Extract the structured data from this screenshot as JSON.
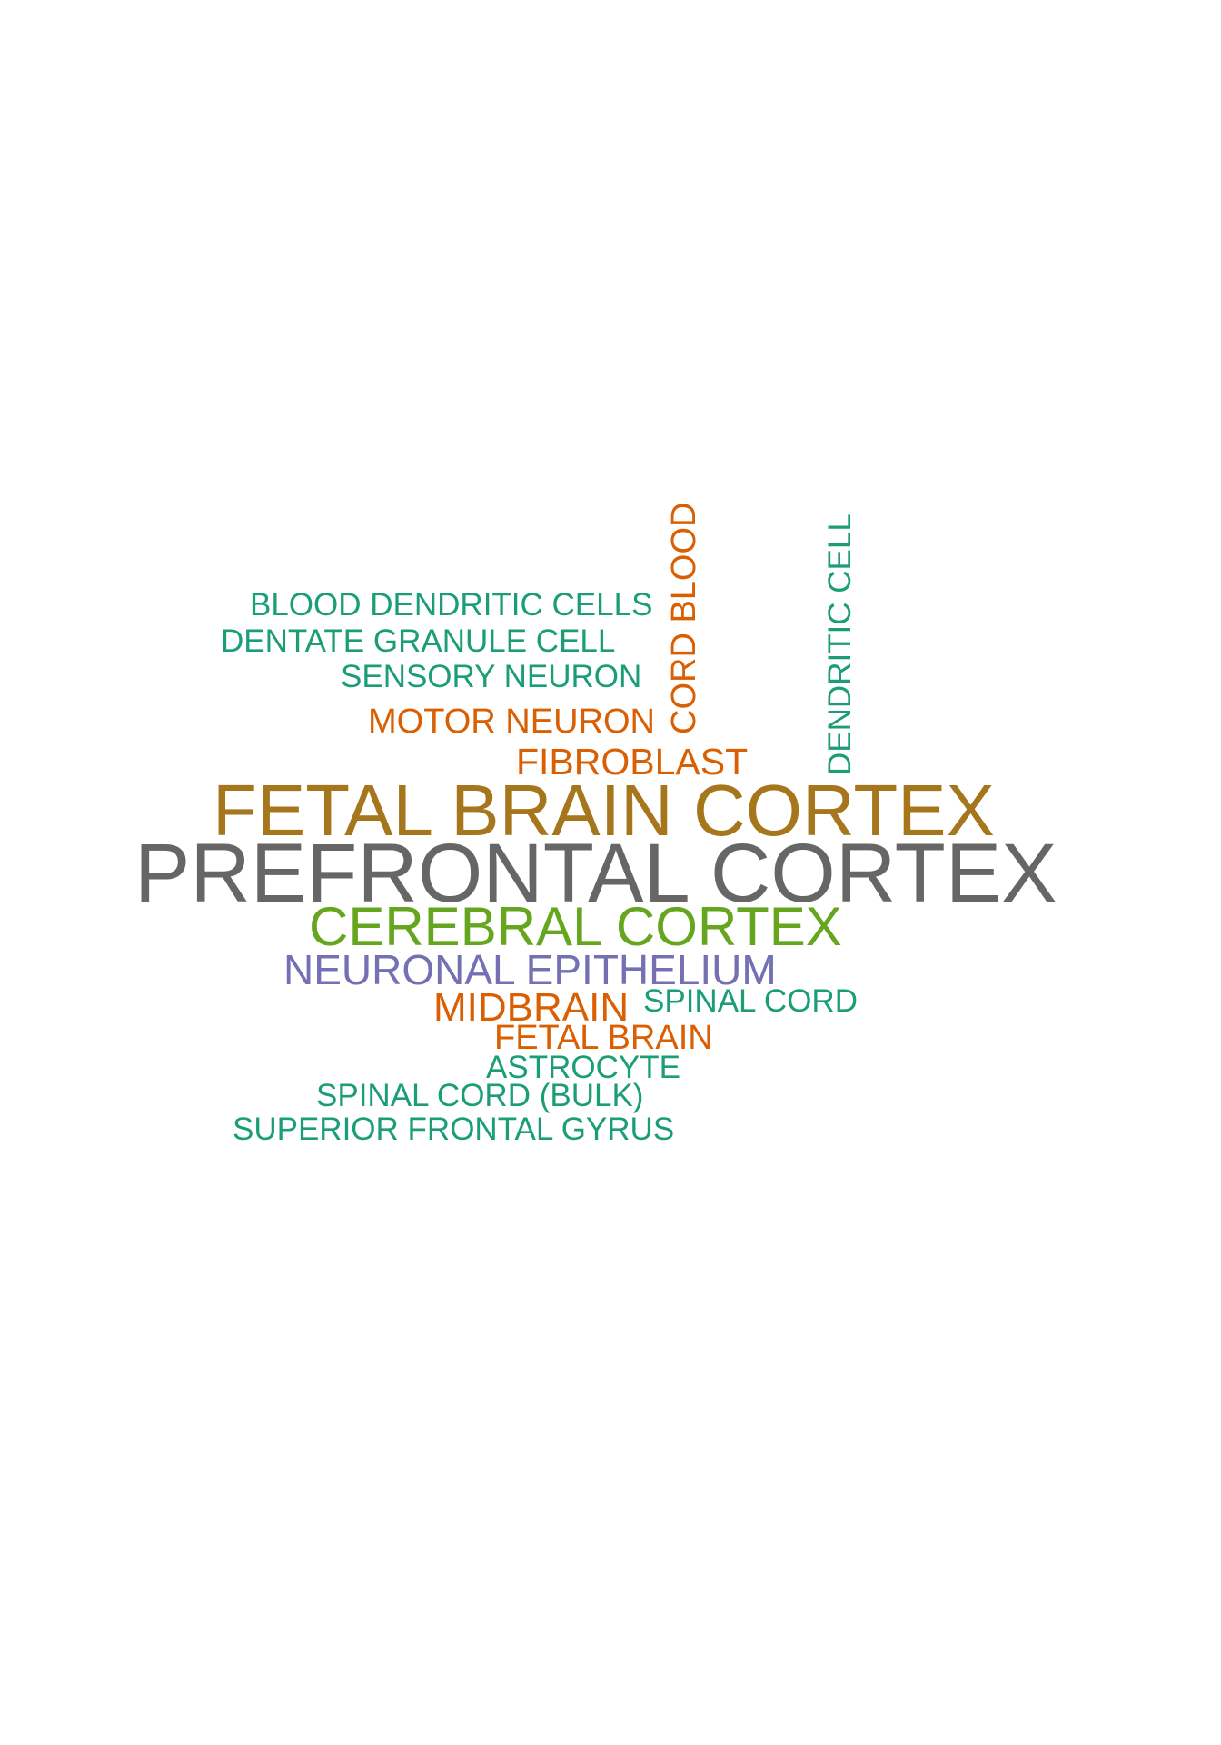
{
  "colors": {
    "teal": "#1b9e77",
    "orange": "#d95f02",
    "gold": "#a6761d",
    "gray": "#666666",
    "green": "#66a61e",
    "purple": "#7570b3"
  },
  "words": {
    "blood_dendritic_cells": "BLOOD DENDRITIC CELLS",
    "dentate_granule_cell": "DENTATE GRANULE CELL",
    "sensory_neuron": "SENSORY NEURON",
    "motor_neuron": "MOTOR NEURON",
    "fibroblast": "FIBROBLAST",
    "fetal_brain_cortex": "FETAL BRAIN CORTEX",
    "prefrontal_cortex": "PREFRONTAL CORTEX",
    "cerebral_cortex": "CEREBRAL CORTEX",
    "neuronal_epithelium": "NEURONAL EPITHELIUM",
    "midbrain": "MIDBRAIN",
    "spinal_cord": "SPINAL CORD",
    "fetal_brain": "FETAL BRAIN",
    "astrocyte": "ASTROCYTE",
    "spinal_cord_bulk": "SPINAL CORD (BULK)",
    "superior_frontal_gyrus": "SUPERIOR FRONTAL GYRUS",
    "cord_blood": "CORD BLOOD",
    "dendritic_cell": "DENDRITIC CELL"
  }
}
